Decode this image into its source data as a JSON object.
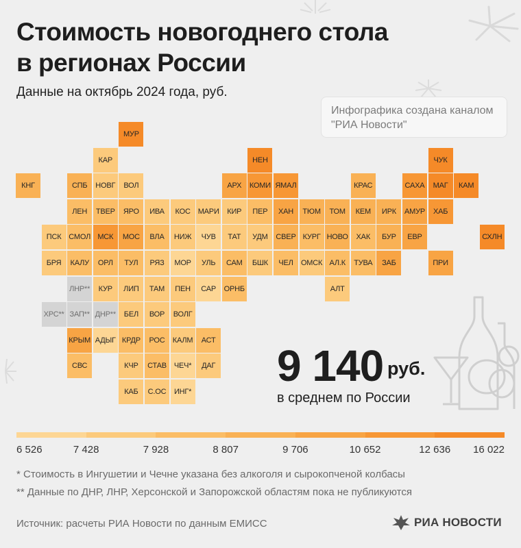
{
  "title": [
    "Стоимость новогоднего стола",
    "в регионах России"
  ],
  "subtitle": "Данные на октябрь 2024 года, руб.",
  "credit": [
    "Инфографика создана каналом",
    "\"РИА Новости\""
  ],
  "average": {
    "value": "9 140",
    "unit": "руб.",
    "caption": "в среднем по России"
  },
  "scale": {
    "labels": [
      "6 526",
      "7 428",
      "7 928",
      "8 807",
      "9 706",
      "10 652",
      "12 636",
      "16 022"
    ],
    "colors": [
      "#fdd694",
      "#fcca7c",
      "#fbbd66",
      "#f9b155",
      "#f8a444",
      "#f79735",
      "#f58a28"
    ],
    "na_color": "#d4d4d4"
  },
  "notes": [
    "* Стоимость в Ингушетии и Чечне указана без алкоголя и сырокопченой колбасы",
    "** Данные по ДНР, ЛНР, Херсонской и Запорожской областям пока не публикуются"
  ],
  "source": "Источник: расчеты РИА Новости по данным ЕМИСС",
  "logo": "РИА НОВОСТИ",
  "map_data": {
    "regions": [
      {
        "label": "МУР",
        "col": 4,
        "row": 0,
        "level": 6
      },
      {
        "label": "КАР",
        "col": 3,
        "row": 1,
        "level": 1
      },
      {
        "label": "НЕН",
        "col": 9,
        "row": 1,
        "level": 6
      },
      {
        "label": "ЧУК",
        "col": 16,
        "row": 1,
        "level": 7
      },
      {
        "label": "КНГ",
        "col": 0,
        "row": 2,
        "level": 3
      },
      {
        "label": "СПБ",
        "col": 2,
        "row": 2,
        "level": 3
      },
      {
        "label": "НОВГ",
        "col": 3,
        "row": 2,
        "level": 1
      },
      {
        "label": "ВОЛ",
        "col": 4,
        "row": 2,
        "level": 1
      },
      {
        "label": "АРХ",
        "col": 8,
        "row": 2,
        "level": 4
      },
      {
        "label": "КОМИ",
        "col": 9,
        "row": 2,
        "level": 5
      },
      {
        "label": "ЯМАЛ",
        "col": 10,
        "row": 2,
        "level": 5
      },
      {
        "label": "КРАС",
        "col": 13,
        "row": 2,
        "level": 3
      },
      {
        "label": "САХА",
        "col": 15,
        "row": 2,
        "level": 5
      },
      {
        "label": "МАГ",
        "col": 16,
        "row": 2,
        "level": 7
      },
      {
        "label": "КАМ",
        "col": 17,
        "row": 2,
        "level": 7
      },
      {
        "label": "ЛЕН",
        "col": 2,
        "row": 3,
        "level": 2
      },
      {
        "label": "ТВЕР",
        "col": 3,
        "row": 3,
        "level": 2
      },
      {
        "label": "ЯРО",
        "col": 4,
        "row": 3,
        "level": 2
      },
      {
        "label": "ИВА",
        "col": 5,
        "row": 3,
        "level": 1
      },
      {
        "label": "КОС",
        "col": 6,
        "row": 3,
        "level": 1
      },
      {
        "label": "МАРИ",
        "col": 7,
        "row": 3,
        "level": 1
      },
      {
        "label": "КИР",
        "col": 8,
        "row": 3,
        "level": 1
      },
      {
        "label": "ПЕР",
        "col": 9,
        "row": 3,
        "level": 2
      },
      {
        "label": "ХАН",
        "col": 10,
        "row": 3,
        "level": 4
      },
      {
        "label": "ТЮМ",
        "col": 11,
        "row": 3,
        "level": 3
      },
      {
        "label": "ТОМ",
        "col": 12,
        "row": 3,
        "level": 3
      },
      {
        "label": "КЕМ",
        "col": 13,
        "row": 3,
        "level": 3
      },
      {
        "label": "ИРК",
        "col": 14,
        "row": 3,
        "level": 3
      },
      {
        "label": "АМУР",
        "col": 15,
        "row": 3,
        "level": 4
      },
      {
        "label": "ХАБ",
        "col": 16,
        "row": 3,
        "level": 5
      },
      {
        "label": "ПСК",
        "col": 1,
        "row": 4,
        "level": 1
      },
      {
        "label": "СМОЛ",
        "col": 2,
        "row": 4,
        "level": 2
      },
      {
        "label": "МСК",
        "col": 3,
        "row": 4,
        "level": 5
      },
      {
        "label": "МОС",
        "col": 4,
        "row": 4,
        "level": 4
      },
      {
        "label": "ВЛА",
        "col": 5,
        "row": 4,
        "level": 2
      },
      {
        "label": "НИЖ",
        "col": 6,
        "row": 4,
        "level": 1
      },
      {
        "label": "ЧУВ",
        "col": 7,
        "row": 4,
        "level": 0
      },
      {
        "label": "ТАТ",
        "col": 8,
        "row": 4,
        "level": 1
      },
      {
        "label": "УДМ",
        "col": 9,
        "row": 4,
        "level": 1
      },
      {
        "label": "СВЕР",
        "col": 10,
        "row": 4,
        "level": 3
      },
      {
        "label": "КУРГ",
        "col": 11,
        "row": 4,
        "level": 2
      },
      {
        "label": "НОВО",
        "col": 12,
        "row": 4,
        "level": 3
      },
      {
        "label": "ХАК",
        "col": 13,
        "row": 4,
        "level": 2
      },
      {
        "label": "БУР",
        "col": 14,
        "row": 4,
        "level": 3
      },
      {
        "label": "ЕВР",
        "col": 15,
        "row": 4,
        "level": 4
      },
      {
        "label": "СХЛН",
        "col": 18,
        "row": 4,
        "level": 6
      },
      {
        "label": "БРЯ",
        "col": 1,
        "row": 5,
        "level": 1
      },
      {
        "label": "КАЛУ",
        "col": 2,
        "row": 5,
        "level": 2
      },
      {
        "label": "ОРЛ",
        "col": 3,
        "row": 5,
        "level": 2
      },
      {
        "label": "ТУЛ",
        "col": 4,
        "row": 5,
        "level": 2
      },
      {
        "label": "РЯЗ",
        "col": 5,
        "row": 5,
        "level": 1
      },
      {
        "label": "МОР",
        "col": 6,
        "row": 5,
        "level": 0
      },
      {
        "label": "УЛЬ",
        "col": 7,
        "row": 5,
        "level": 1
      },
      {
        "label": "САМ",
        "col": 8,
        "row": 5,
        "level": 2
      },
      {
        "label": "БШК",
        "col": 9,
        "row": 5,
        "level": 1
      },
      {
        "label": "ЧЕЛ",
        "col": 10,
        "row": 5,
        "level": 2
      },
      {
        "label": "ОМСК",
        "col": 11,
        "row": 5,
        "level": 1
      },
      {
        "label": "АЛ.К",
        "col": 12,
        "row": 5,
        "level": 2
      },
      {
        "label": "ТУВА",
        "col": 13,
        "row": 5,
        "level": 2
      },
      {
        "label": "ЗАБ",
        "col": 14,
        "row": 5,
        "level": 4
      },
      {
        "label": "ПРИ",
        "col": 16,
        "row": 5,
        "level": 4
      },
      {
        "label": "ЛНР**",
        "col": 2,
        "row": 6,
        "level": -1
      },
      {
        "label": "КУР",
        "col": 3,
        "row": 6,
        "level": 1
      },
      {
        "label": "ЛИП",
        "col": 4,
        "row": 6,
        "level": 1
      },
      {
        "label": "ТАМ",
        "col": 5,
        "row": 6,
        "level": 1
      },
      {
        "label": "ПЕН",
        "col": 6,
        "row": 6,
        "level": 1
      },
      {
        "label": "САР",
        "col": 7,
        "row": 6,
        "level": 0
      },
      {
        "label": "ОРНБ",
        "col": 8,
        "row": 6,
        "level": 2
      },
      {
        "label": "АЛТ",
        "col": 12,
        "row": 6,
        "level": 1
      },
      {
        "label": "ХРС**",
        "col": 1,
        "row": 7,
        "level": -1
      },
      {
        "label": "ЗАП**",
        "col": 2,
        "row": 7,
        "level": -1
      },
      {
        "label": "ДНР**",
        "col": 3,
        "row": 7,
        "level": -1
      },
      {
        "label": "БЕЛ",
        "col": 4,
        "row": 7,
        "level": 1
      },
      {
        "label": "ВОР",
        "col": 5,
        "row": 7,
        "level": 1
      },
      {
        "label": "ВОЛГ",
        "col": 6,
        "row": 7,
        "level": 1
      },
      {
        "label": "КРЫМ",
        "col": 2,
        "row": 8,
        "level": 4
      },
      {
        "label": "АДЫГ",
        "col": 3,
        "row": 8,
        "level": 0
      },
      {
        "label": "КРДР",
        "col": 4,
        "row": 8,
        "level": 2
      },
      {
        "label": "РОС",
        "col": 5,
        "row": 8,
        "level": 2
      },
      {
        "label": "КАЛМ",
        "col": 6,
        "row": 8,
        "level": 1
      },
      {
        "label": "АСТ",
        "col": 7,
        "row": 8,
        "level": 2
      },
      {
        "label": "СВС",
        "col": 2,
        "row": 9,
        "level": 2
      },
      {
        "label": "КЧР",
        "col": 4,
        "row": 9,
        "level": 1
      },
      {
        "label": "СТАВ",
        "col": 5,
        "row": 9,
        "level": 2
      },
      {
        "label": "ЧЕЧ*",
        "col": 6,
        "row": 9,
        "level": 0
      },
      {
        "label": "ДАГ",
        "col": 7,
        "row": 9,
        "level": 1
      },
      {
        "label": "КАБ",
        "col": 4,
        "row": 10,
        "level": 1
      },
      {
        "label": "С.ОС",
        "col": 5,
        "row": 10,
        "level": 1
      },
      {
        "label": "ИНГ*",
        "col": 6,
        "row": 10,
        "level": 0
      }
    ]
  }
}
